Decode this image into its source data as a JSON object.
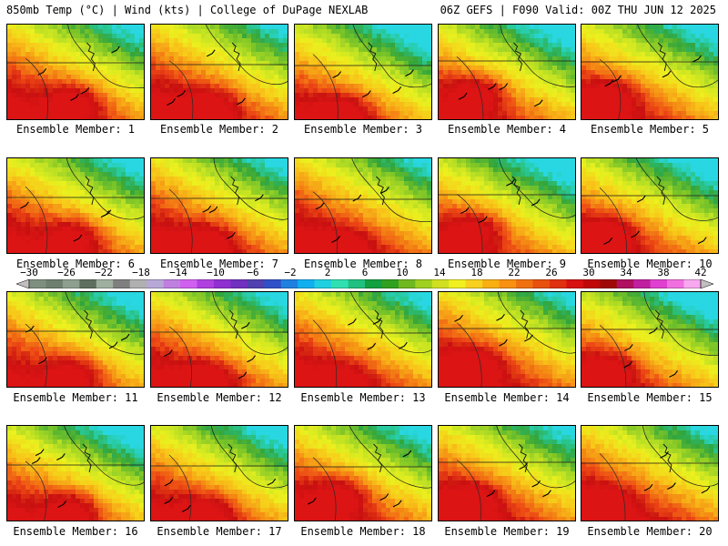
{
  "header": {
    "left_title": "850mb Temp (°C) | Wind (kts) | College of DuPage NEXLAB",
    "right_title": "06Z GEFS | F090 Valid: 00Z THU JUN 12 2025"
  },
  "members": [
    "Ensemble Member: 1",
    "Ensemble Member: 2",
    "Ensemble Member: 3",
    "Ensemble Member: 4",
    "Ensemble Member: 5",
    "Ensemble Member: 6",
    "Ensemble Member: 7",
    "Ensemble Member: 8",
    "Ensemble Member: 9",
    "Ensemble Member: 10",
    "Ensemble Member: 11",
    "Ensemble Member: 12",
    "Ensemble Member: 13",
    "Ensemble Member: 14",
    "Ensemble Member: 15",
    "Ensemble Member: 16",
    "Ensemble Member: 17",
    "Ensemble Member: 18",
    "Ensemble Member: 19",
    "Ensemble Member: 20"
  ],
  "colorbar": {
    "tick_labels": [
      "−30",
      "−26",
      "−22",
      "−18",
      "−14",
      "−10",
      "−6",
      "−2",
      "2",
      "6",
      "10",
      "14",
      "18",
      "22",
      "26",
      "30",
      "34",
      "38",
      "42"
    ],
    "colors": [
      "#7f8f7f",
      "#6f7f6f",
      "#8f9f8f",
      "#5f6f5f",
      "#9faf9f",
      "#7f7f7f",
      "#b0b0b0",
      "#b8a8d8",
      "#c080e0",
      "#d060f0",
      "#b040e0",
      "#9030d0",
      "#7030c0",
      "#5040b0",
      "#3050c8",
      "#2080e0",
      "#10b0f0",
      "#20d0e0",
      "#30e0b0",
      "#20c080",
      "#10a040",
      "#30a020",
      "#70b820",
      "#a0d020",
      "#d0e020",
      "#f0f020",
      "#f8d020",
      "#f8b010",
      "#f89010",
      "#f07010",
      "#e85010",
      "#e03010",
      "#d81010",
      "#c00808",
      "#a00808",
      "#b01060",
      "#c020a0",
      "#e040d0",
      "#f070e0",
      "#f8a8f0"
    ],
    "end_color": "#c0c0c0"
  }
}
